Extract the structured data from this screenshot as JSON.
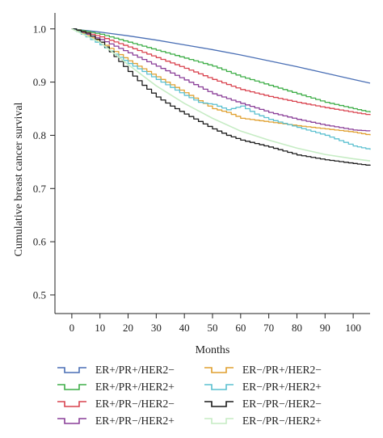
{
  "chart_data": {
    "type": "line",
    "title": "",
    "xlabel": "Months",
    "ylabel": "Cumulative breast cancer survival",
    "xlim": [
      -6,
      106
    ],
    "ylim": [
      0.465,
      1.03
    ],
    "x_ticks": [
      0,
      10,
      20,
      30,
      40,
      50,
      60,
      70,
      80,
      90,
      100
    ],
    "y_ticks": [
      0.5,
      0.6,
      0.7,
      0.8,
      0.9,
      1.0
    ],
    "y_tick_labels": [
      "0.5",
      "0.6",
      "0.7",
      "0.8",
      "0.9",
      "1.0"
    ],
    "x_tick_labels": [
      "0",
      "10",
      "20",
      "30",
      "40",
      "50",
      "60",
      "70",
      "80",
      "90",
      "100"
    ],
    "grid": false,
    "legend_placement": "bottom",
    "series": [
      {
        "name": "ER+/PR+/HER2−",
        "color": "#4a6fb5",
        "step": "smooth",
        "x": [
          0,
          10,
          20,
          30,
          40,
          50,
          60,
          70,
          80,
          90,
          100,
          106
        ],
        "y": [
          1.0,
          0.994,
          0.987,
          0.979,
          0.97,
          0.961,
          0.951,
          0.94,
          0.929,
          0.917,
          0.905,
          0.898
        ]
      },
      {
        "name": "ER+/PR+/HER2+",
        "color": "#3fae48",
        "step": "steps",
        "x": [
          0,
          10,
          20,
          30,
          40,
          50,
          60,
          70,
          80,
          90,
          100,
          106
        ],
        "y": [
          1.0,
          0.99,
          0.975,
          0.96,
          0.945,
          0.93,
          0.91,
          0.894,
          0.878,
          0.862,
          0.85,
          0.843
        ]
      },
      {
        "name": "ER+/PR−/HER2−",
        "color": "#d9434f",
        "step": "steps",
        "x": [
          0,
          10,
          20,
          30,
          40,
          50,
          60,
          70,
          80,
          90,
          100,
          106
        ],
        "y": [
          1.0,
          0.985,
          0.966,
          0.946,
          0.926,
          0.905,
          0.886,
          0.873,
          0.862,
          0.852,
          0.843,
          0.838
        ]
      },
      {
        "name": "ER+/PR−/HER2+",
        "color": "#8a3f98",
        "step": "steps",
        "x": [
          0,
          10,
          20,
          30,
          40,
          50,
          60,
          70,
          80,
          90,
          100,
          106
        ],
        "y": [
          1.0,
          0.98,
          0.955,
          0.93,
          0.904,
          0.878,
          0.86,
          0.843,
          0.83,
          0.819,
          0.81,
          0.808
        ]
      },
      {
        "name": "ER−/PR+/HER2−",
        "color": "#e0a030",
        "step": "steps",
        "x": [
          0,
          10,
          20,
          30,
          40,
          45,
          50,
          55,
          60,
          70,
          80,
          90,
          100,
          106
        ],
        "y": [
          1.0,
          0.975,
          0.94,
          0.91,
          0.88,
          0.865,
          0.85,
          0.843,
          0.832,
          0.825,
          0.818,
          0.812,
          0.806,
          0.8
        ]
      },
      {
        "name": "ER−/PR+/HER2+",
        "color": "#5bc0d0",
        "step": "steps",
        "x": [
          0,
          10,
          20,
          30,
          40,
          45,
          50,
          55,
          60,
          65,
          70,
          80,
          90,
          100,
          106
        ],
        "y": [
          1.0,
          0.97,
          0.935,
          0.905,
          0.875,
          0.862,
          0.858,
          0.848,
          0.855,
          0.84,
          0.83,
          0.815,
          0.8,
          0.78,
          0.773
        ]
      },
      {
        "name": "ER−/PR−/HER2−",
        "color": "#1c1c1c",
        "step": "steps",
        "x": [
          0,
          5,
          10,
          15,
          20,
          25,
          30,
          35,
          40,
          45,
          50,
          55,
          60,
          70,
          80,
          90,
          100,
          106
        ],
        "y": [
          1.0,
          0.992,
          0.975,
          0.948,
          0.92,
          0.894,
          0.872,
          0.855,
          0.84,
          0.826,
          0.812,
          0.8,
          0.791,
          0.778,
          0.763,
          0.754,
          0.747,
          0.743
        ]
      },
      {
        "name": "ER−/PR−/HER2+",
        "color": "#c6ecc4",
        "step": "smooth",
        "x": [
          0,
          10,
          20,
          30,
          40,
          50,
          60,
          70,
          80,
          90,
          100,
          106
        ],
        "y": [
          1.0,
          0.975,
          0.933,
          0.893,
          0.86,
          0.832,
          0.808,
          0.791,
          0.776,
          0.764,
          0.756,
          0.752
        ]
      }
    ]
  }
}
